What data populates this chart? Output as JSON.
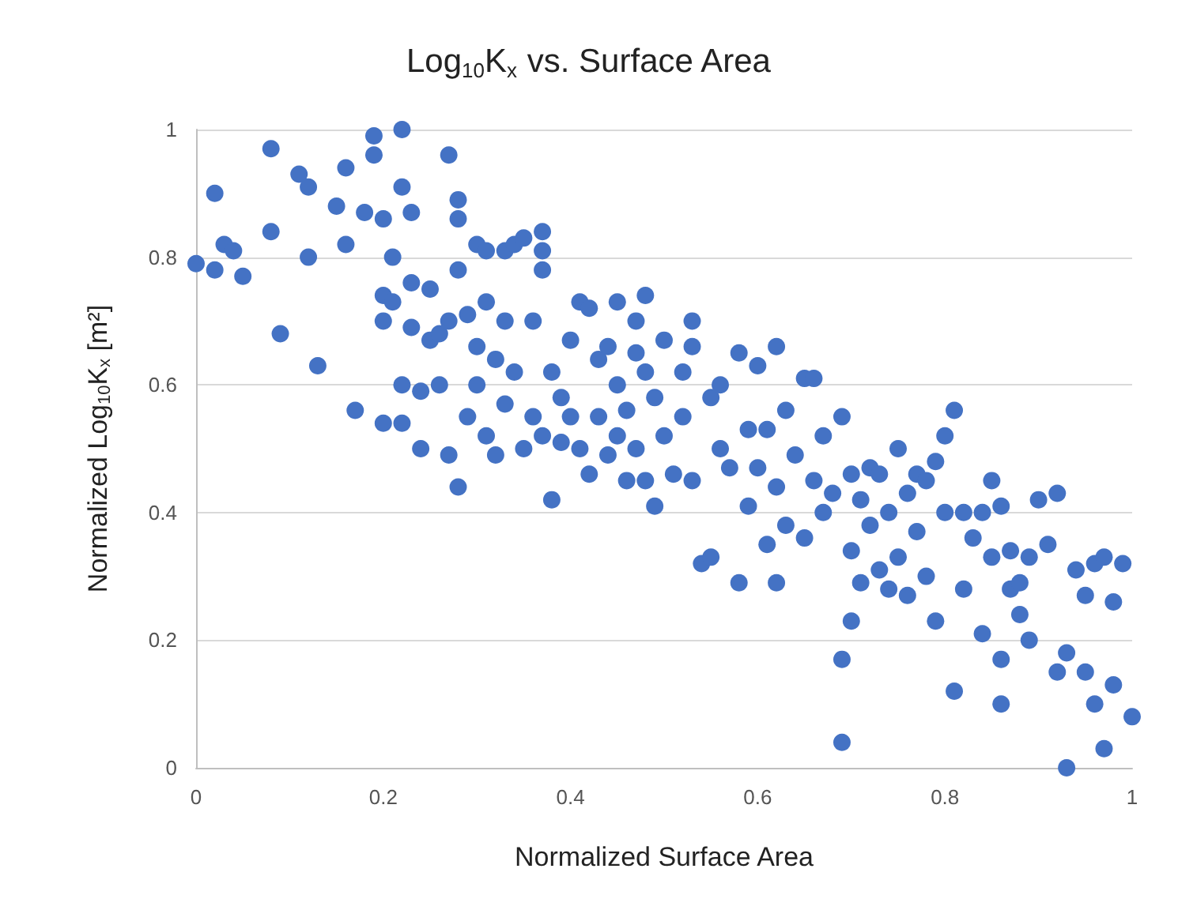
{
  "chart_data": {
    "type": "scatter",
    "title": "Log$_{10}$K$_{x}$ vs. Surface Area",
    "xlabel": "Normalized Surface Area",
    "ylabel": "Normalized Log$_{10}$K$_{x}$ [m²]",
    "xlim": [
      0,
      1
    ],
    "xticks": [
      0,
      0.2,
      0.4,
      0.6,
      0.8,
      1
    ],
    "ylim": [
      0,
      1
    ],
    "yticks": [
      0,
      0.2,
      0.4,
      0.6,
      0.8,
      1
    ],
    "grid": "y",
    "marker": "circle",
    "series": [
      {
        "color": "#4472c4",
        "x": [
          0,
          0.02,
          0.02,
          0.03,
          0.04,
          0.05,
          0.08,
          0.08,
          0.09,
          0.11,
          0.12,
          0.12,
          0.13,
          0.15,
          0.16,
          0.16,
          0.17,
          0.18,
          0.19,
          0.19,
          0.2,
          0.2,
          0.2,
          0.2,
          0.21,
          0.21,
          0.22,
          0.22,
          0.22,
          0.22,
          0.23,
          0.23,
          0.23,
          0.24,
          0.24,
          0.25,
          0.25,
          0.26,
          0.26,
          0.27,
          0.27,
          0.27,
          0.28,
          0.28,
          0.28,
          0.28,
          0.29,
          0.29,
          0.3,
          0.3,
          0.3,
          0.31,
          0.31,
          0.31,
          0.32,
          0.32,
          0.33,
          0.33,
          0.33,
          0.34,
          0.34,
          0.35,
          0.35,
          0.36,
          0.36,
          0.37,
          0.37,
          0.37,
          0.37,
          0.38,
          0.38,
          0.39,
          0.39,
          0.4,
          0.4,
          0.41,
          0.41,
          0.42,
          0.42,
          0.43,
          0.43,
          0.44,
          0.44,
          0.45,
          0.45,
          0.45,
          0.46,
          0.46,
          0.47,
          0.47,
          0.47,
          0.48,
          0.48,
          0.48,
          0.49,
          0.49,
          0.5,
          0.5,
          0.51,
          0.52,
          0.52,
          0.53,
          0.53,
          0.53,
          0.54,
          0.55,
          0.55,
          0.56,
          0.56,
          0.57,
          0.58,
          0.58,
          0.59,
          0.59,
          0.6,
          0.6,
          0.61,
          0.61,
          0.62,
          0.62,
          0.62,
          0.63,
          0.63,
          0.64,
          0.65,
          0.65,
          0.66,
          0.66,
          0.67,
          0.67,
          0.68,
          0.69,
          0.69,
          0.69,
          0.7,
          0.7,
          0.7,
          0.71,
          0.71,
          0.72,
          0.72,
          0.73,
          0.73,
          0.74,
          0.74,
          0.75,
          0.75,
          0.76,
          0.76,
          0.77,
          0.77,
          0.78,
          0.78,
          0.79,
          0.79,
          0.8,
          0.8,
          0.81,
          0.81,
          0.82,
          0.82,
          0.83,
          0.84,
          0.84,
          0.85,
          0.85,
          0.86,
          0.86,
          0.86,
          0.87,
          0.87,
          0.88,
          0.88,
          0.89,
          0.89,
          0.9,
          0.91,
          0.92,
          0.92,
          0.93,
          0.93,
          0.94,
          0.95,
          0.95,
          0.96,
          0.96,
          0.97,
          0.97,
          0.98,
          0.98,
          0.99,
          1
        ],
        "values": [
          0.79,
          0.78,
          0.9,
          0.82,
          0.81,
          0.77,
          0.84,
          0.97,
          0.68,
          0.93,
          0.8,
          0.91,
          0.63,
          0.88,
          0.94,
          0.82,
          0.56,
          0.87,
          0.96,
          0.99,
          0.86,
          0.74,
          0.7,
          0.54,
          0.8,
          0.73,
          0.91,
          1,
          0.6,
          0.54,
          0.87,
          0.76,
          0.69,
          0.59,
          0.5,
          0.67,
          0.75,
          0.6,
          0.68,
          0.96,
          0.7,
          0.49,
          0.86,
          0.89,
          0.78,
          0.44,
          0.55,
          0.71,
          0.82,
          0.66,
          0.6,
          0.73,
          0.81,
          0.52,
          0.64,
          0.49,
          0.81,
          0.7,
          0.57,
          0.62,
          0.82,
          0.83,
          0.5,
          0.55,
          0.7,
          0.84,
          0.81,
          0.78,
          0.52,
          0.62,
          0.42,
          0.58,
          0.51,
          0.67,
          0.55,
          0.73,
          0.5,
          0.72,
          0.46,
          0.64,
          0.55,
          0.66,
          0.49,
          0.73,
          0.6,
          0.52,
          0.56,
          0.45,
          0.7,
          0.65,
          0.5,
          0.74,
          0.62,
          0.45,
          0.58,
          0.41,
          0.67,
          0.52,
          0.46,
          0.62,
          0.55,
          0.7,
          0.66,
          0.45,
          0.32,
          0.33,
          0.58,
          0.6,
          0.5,
          0.47,
          0.65,
          0.29,
          0.53,
          0.41,
          0.63,
          0.47,
          0.35,
          0.53,
          0.66,
          0.44,
          0.29,
          0.56,
          0.38,
          0.49,
          0.61,
          0.36,
          0.61,
          0.45,
          0.4,
          0.52,
          0.43,
          0.55,
          0.17,
          0.04,
          0.46,
          0.34,
          0.23,
          0.29,
          0.42,
          0.38,
          0.47,
          0.31,
          0.46,
          0.4,
          0.28,
          0.5,
          0.33,
          0.43,
          0.27,
          0.46,
          0.37,
          0.45,
          0.3,
          0.23,
          0.48,
          0.4,
          0.52,
          0.56,
          0.12,
          0.4,
          0.28,
          0.36,
          0.4,
          0.21,
          0.45,
          0.33,
          0.41,
          0.17,
          0.1,
          0.34,
          0.28,
          0.29,
          0.24,
          0.2,
          0.33,
          0.42,
          0.35,
          0.15,
          0.43,
          0,
          0.18,
          0.31,
          0.15,
          0.27,
          0.32,
          0.1,
          0.33,
          0.03,
          0.26,
          0.13,
          0.32,
          0.08
        ]
      }
    ]
  }
}
